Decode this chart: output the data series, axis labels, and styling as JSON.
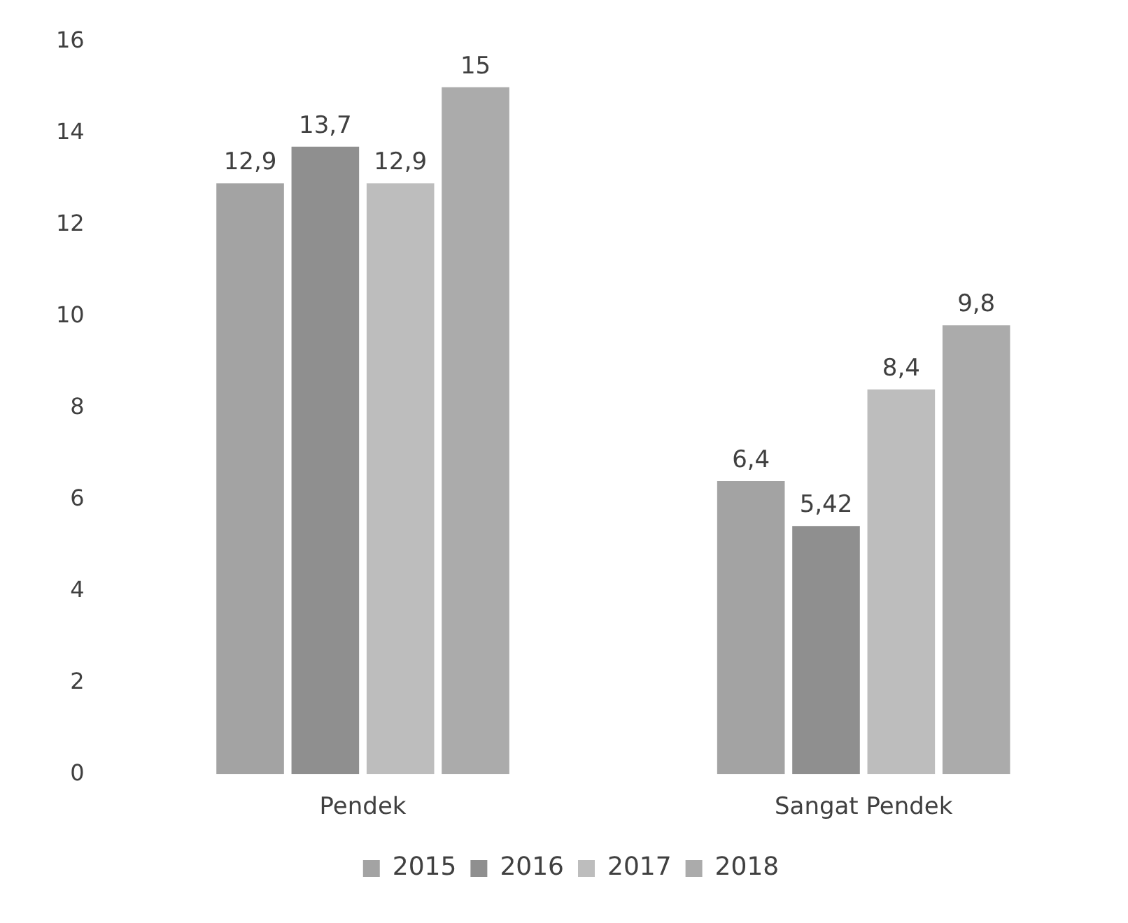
{
  "chart_data": {
    "type": "bar",
    "categories": [
      "Pendek",
      "Sangat Pendek"
    ],
    "series": [
      {
        "name": "2015",
        "color": "#a3a3a3",
        "values": [
          12.9,
          6.4
        ],
        "value_labels": [
          "12,9",
          "6,4"
        ]
      },
      {
        "name": "2016",
        "color": "#8f8f8f",
        "values": [
          13.7,
          5.42
        ],
        "value_labels": [
          "13,7",
          "5,42"
        ]
      },
      {
        "name": "2017",
        "color": "#bdbdbd",
        "values": [
          12.9,
          8.4
        ],
        "value_labels": [
          "12,9",
          "8,4"
        ]
      },
      {
        "name": "2018",
        "color": "#ababab",
        "values": [
          15,
          9.8
        ],
        "value_labels": [
          "15",
          "9,8"
        ]
      }
    ],
    "ylim": [
      0,
      16
    ],
    "yticks": [
      0,
      2,
      4,
      6,
      8,
      10,
      12,
      14,
      16
    ],
    "grid": false,
    "legend": "bottom"
  }
}
